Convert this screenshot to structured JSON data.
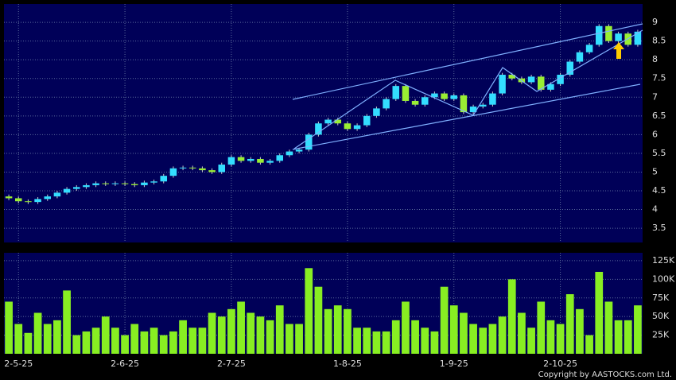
{
  "chart_data": [
    {
      "type": "candlestick",
      "categories": [
        null,
        "2-5-25",
        null,
        null,
        null,
        null,
        null,
        null,
        null,
        null,
        null,
        null,
        "2-6-25",
        null,
        null,
        null,
        null,
        null,
        null,
        null,
        null,
        null,
        null,
        "2-7-25",
        null,
        null,
        null,
        null,
        null,
        null,
        null,
        null,
        null,
        null,
        null,
        "1-8-25",
        null,
        null,
        null,
        null,
        null,
        null,
        null,
        null,
        null,
        null,
        "1-9-25",
        null,
        null,
        null,
        null,
        null,
        null,
        null,
        null,
        null,
        null,
        "2-10-25",
        null,
        null,
        null,
        null,
        null,
        null,
        null,
        null
      ],
      "open": [
        4.35,
        4.3,
        4.22,
        4.2,
        4.28,
        4.35,
        4.45,
        4.55,
        4.6,
        4.65,
        4.7,
        4.68,
        4.7,
        4.68,
        4.65,
        4.72,
        4.75,
        4.9,
        5.1,
        5.12,
        5.1,
        5.05,
        5.0,
        5.2,
        5.4,
        5.3,
        5.35,
        5.25,
        5.3,
        5.45,
        5.55,
        5.6,
        6.0,
        6.3,
        6.4,
        6.3,
        6.15,
        6.25,
        6.5,
        6.7,
        6.95,
        7.3,
        6.9,
        6.8,
        7.0,
        7.1,
        6.95,
        7.05,
        6.6,
        6.75,
        6.8,
        7.1,
        7.6,
        7.5,
        7.4,
        7.55,
        7.2,
        7.35,
        7.6,
        7.95,
        8.2,
        8.4,
        8.9,
        8.5,
        8.7,
        8.4
      ],
      "high": [
        4.4,
        4.35,
        4.27,
        4.33,
        4.4,
        4.5,
        4.6,
        4.65,
        4.7,
        4.75,
        4.75,
        4.75,
        4.75,
        4.73,
        4.77,
        4.8,
        4.95,
        5.15,
        5.17,
        5.17,
        5.15,
        5.1,
        5.25,
        5.45,
        5.45,
        5.4,
        5.4,
        5.35,
        5.5,
        5.6,
        5.65,
        6.05,
        6.35,
        6.45,
        6.45,
        6.35,
        6.3,
        6.55,
        6.75,
        7.0,
        7.35,
        7.35,
        6.95,
        7.05,
        7.15,
        7.15,
        7.1,
        7.1,
        6.8,
        6.85,
        7.15,
        7.65,
        7.65,
        7.55,
        7.6,
        7.6,
        7.4,
        7.65,
        8.0,
        8.25,
        8.45,
        8.95,
        8.95,
        8.75,
        8.75,
        8.8
      ],
      "low": [
        4.25,
        4.17,
        4.15,
        4.15,
        4.23,
        4.3,
        4.4,
        4.5,
        4.55,
        4.6,
        4.63,
        4.63,
        4.63,
        4.6,
        4.6,
        4.67,
        4.7,
        4.85,
        5.05,
        5.05,
        5.0,
        4.95,
        4.95,
        5.15,
        5.25,
        5.25,
        5.2,
        5.2,
        5.25,
        5.4,
        5.5,
        5.55,
        5.95,
        6.25,
        6.25,
        6.1,
        6.1,
        6.2,
        6.45,
        6.65,
        6.9,
        6.85,
        6.75,
        6.75,
        6.95,
        6.9,
        6.9,
        6.55,
        6.55,
        6.7,
        6.75,
        7.05,
        7.45,
        7.35,
        7.35,
        7.15,
        7.15,
        7.3,
        7.55,
        7.9,
        8.15,
        8.35,
        8.45,
        8.45,
        8.35,
        8.35
      ],
      "close": [
        4.3,
        4.22,
        4.2,
        4.28,
        4.35,
        4.45,
        4.55,
        4.6,
        4.65,
        4.7,
        4.68,
        4.7,
        4.68,
        4.65,
        4.72,
        4.75,
        4.9,
        5.1,
        5.12,
        5.1,
        5.05,
        5.0,
        5.2,
        5.4,
        5.3,
        5.35,
        5.25,
        5.3,
        5.45,
        5.55,
        5.6,
        6.0,
        6.3,
        6.4,
        6.3,
        6.15,
        6.25,
        6.5,
        6.7,
        6.95,
        7.3,
        6.9,
        6.8,
        7.0,
        7.1,
        6.95,
        7.05,
        6.6,
        6.75,
        6.8,
        7.1,
        7.6,
        7.5,
        7.4,
        7.55,
        7.2,
        7.35,
        7.6,
        7.95,
        8.2,
        8.4,
        8.9,
        8.5,
        8.7,
        8.4,
        8.75
      ],
      "up_color": "#33ddff",
      "down_color": "#99ee33",
      "ylim": [
        3.12,
        9.49
      ],
      "yticks": [
        3.5,
        4,
        4.5,
        5,
        5.5,
        6,
        6.5,
        7,
        7.5,
        8,
        8.5,
        9
      ],
      "grid": true
    },
    {
      "type": "bar",
      "values": [
        70000,
        40000,
        28000,
        55000,
        40000,
        45000,
        85000,
        25000,
        30000,
        35000,
        50000,
        35000,
        25000,
        40000,
        30000,
        35000,
        25000,
        30000,
        45000,
        35000,
        35000,
        55000,
        50000,
        60000,
        70000,
        55000,
        50000,
        45000,
        65000,
        40000,
        40000,
        115000,
        90000,
        60000,
        65000,
        60000,
        35000,
        35000,
        30000,
        30000,
        45000,
        70000,
        45000,
        35000,
        30000,
        90000,
        65000,
        55000,
        40000,
        35000,
        40000,
        50000,
        100000,
        55000,
        35000,
        70000,
        45000,
        40000,
        80000,
        60000,
        25000,
        110000,
        70000,
        45000,
        45000,
        65000
      ],
      "color": "#88ee22",
      "ylim": [
        0,
        135600
      ],
      "yticks": [
        {
          "value": 25000,
          "label": "25K"
        },
        {
          "value": 50000,
          "label": "50K"
        },
        {
          "value": 75000,
          "label": "75K"
        },
        {
          "value": 100000,
          "label": "100K"
        },
        {
          "value": 125000,
          "label": "125K"
        }
      ],
      "grid": true
    }
  ],
  "copyright": "Copyright by AASTOCKS.com Ltd."
}
